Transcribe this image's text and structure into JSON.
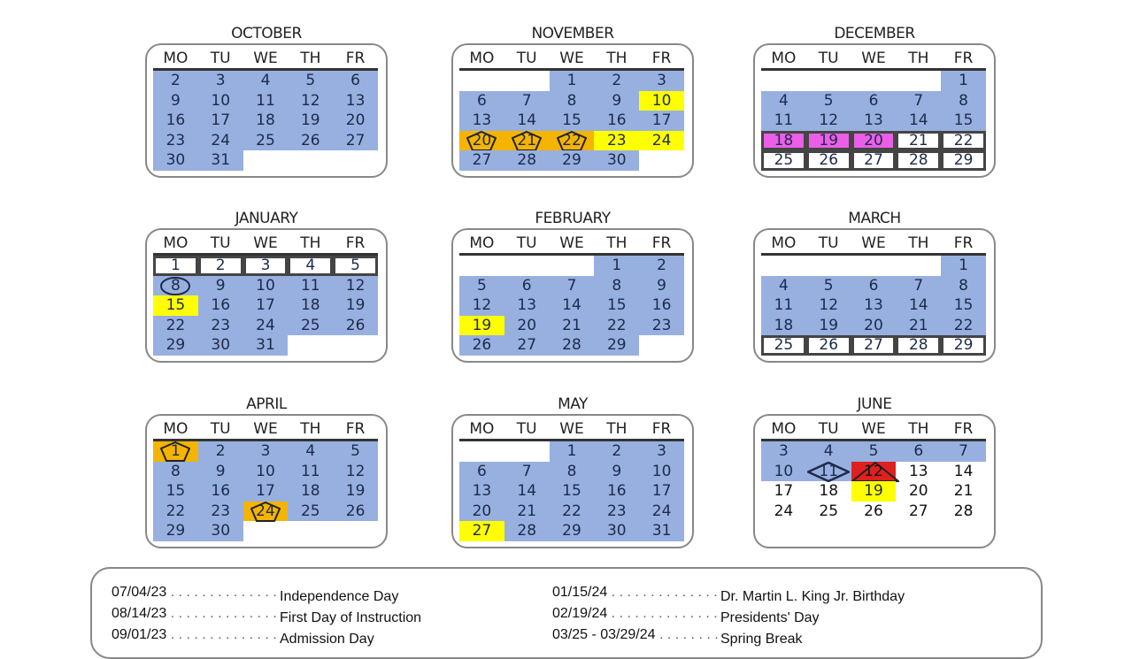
{
  "weekdays": [
    "MO",
    "TU",
    "WE",
    "TH",
    "FR"
  ],
  "colors": {
    "school_day": "#97b0e0",
    "holiday": "#ffff00",
    "recess": "#f4b400",
    "minimum_day": "#ea5ee8",
    "last_day": "#e02020"
  },
  "months": [
    {
      "name": "OCTOBER",
      "weeks": [
        [
          [
            "2",
            "blue"
          ],
          [
            "3",
            "blue"
          ],
          [
            "4",
            "blue"
          ],
          [
            "5",
            "blue"
          ],
          [
            "6",
            "blue"
          ]
        ],
        [
          [
            "9",
            "blue"
          ],
          [
            "10",
            "blue"
          ],
          [
            "11",
            "blue"
          ],
          [
            "12",
            "blue"
          ],
          [
            "13",
            "blue"
          ]
        ],
        [
          [
            "16",
            "blue"
          ],
          [
            "17",
            "blue"
          ],
          [
            "18",
            "blue"
          ],
          [
            "19",
            "blue"
          ],
          [
            "20",
            "blue"
          ]
        ],
        [
          [
            "23",
            "blue"
          ],
          [
            "24",
            "blue"
          ],
          [
            "25",
            "blue"
          ],
          [
            "26",
            "blue"
          ],
          [
            "27",
            "blue"
          ]
        ],
        [
          [
            "30",
            "blue"
          ],
          [
            "31",
            "blue"
          ],
          [
            "",
            ""
          ],
          [
            "",
            ""
          ],
          [
            "",
            ""
          ]
        ]
      ]
    },
    {
      "name": "NOVEMBER",
      "weeks": [
        [
          [
            "",
            ""
          ],
          [
            "",
            ""
          ],
          [
            "1",
            "blue"
          ],
          [
            "2",
            "blue"
          ],
          [
            "3",
            "blue"
          ]
        ],
        [
          [
            "6",
            "blue"
          ],
          [
            "7",
            "blue"
          ],
          [
            "8",
            "blue"
          ],
          [
            "9",
            "blue"
          ],
          [
            "10",
            "yellow"
          ]
        ],
        [
          [
            "13",
            "blue"
          ],
          [
            "14",
            "blue"
          ],
          [
            "15",
            "blue"
          ],
          [
            "16",
            "blue"
          ],
          [
            "17",
            "blue"
          ]
        ],
        [
          [
            "20",
            "orange pentagon"
          ],
          [
            "21",
            "orange pentagon"
          ],
          [
            "22",
            "orange pentagon"
          ],
          [
            "23",
            "yellow"
          ],
          [
            "24",
            "yellow"
          ]
        ],
        [
          [
            "27",
            "blue"
          ],
          [
            "28",
            "blue"
          ],
          [
            "29",
            "blue"
          ],
          [
            "30",
            "blue"
          ],
          [
            "",
            ""
          ]
        ]
      ]
    },
    {
      "name": "DECEMBER",
      "weeks": [
        [
          [
            "",
            ""
          ],
          [
            "",
            ""
          ],
          [
            "",
            ""
          ],
          [
            "",
            ""
          ],
          [
            "1",
            "blue"
          ]
        ],
        [
          [
            "4",
            "blue"
          ],
          [
            "5",
            "blue"
          ],
          [
            "6",
            "blue"
          ],
          [
            "7",
            "blue"
          ],
          [
            "8",
            "blue"
          ]
        ],
        [
          [
            "11",
            "blue"
          ],
          [
            "12",
            "blue"
          ],
          [
            "13",
            "blue"
          ],
          [
            "14",
            "blue"
          ],
          [
            "15",
            "blue"
          ]
        ],
        [
          [
            "18",
            "magenta break"
          ],
          [
            "19",
            "magenta break"
          ],
          [
            "20",
            "magenta break"
          ],
          [
            "21",
            "break"
          ],
          [
            "22",
            "break"
          ]
        ],
        [
          [
            "25",
            "break"
          ],
          [
            "26",
            "break"
          ],
          [
            "27",
            "break"
          ],
          [
            "28",
            "break"
          ],
          [
            "29",
            "break"
          ]
        ]
      ]
    },
    {
      "name": "JANUARY",
      "weeks": [
        [
          [
            "1",
            "break"
          ],
          [
            "2",
            "break"
          ],
          [
            "3",
            "break"
          ],
          [
            "4",
            "break"
          ],
          [
            "5",
            "break"
          ]
        ],
        [
          [
            "8",
            "blue circle"
          ],
          [
            "9",
            "blue"
          ],
          [
            "10",
            "blue"
          ],
          [
            "11",
            "blue"
          ],
          [
            "12",
            "blue"
          ]
        ],
        [
          [
            "15",
            "yellow"
          ],
          [
            "16",
            "blue"
          ],
          [
            "17",
            "blue"
          ],
          [
            "18",
            "blue"
          ],
          [
            "19",
            "blue"
          ]
        ],
        [
          [
            "22",
            "blue"
          ],
          [
            "23",
            "blue"
          ],
          [
            "24",
            "blue"
          ],
          [
            "25",
            "blue"
          ],
          [
            "26",
            "blue"
          ]
        ],
        [
          [
            "29",
            "blue"
          ],
          [
            "30",
            "blue"
          ],
          [
            "31",
            "blue"
          ],
          [
            "",
            ""
          ],
          [
            "",
            ""
          ]
        ]
      ]
    },
    {
      "name": "FEBRUARY",
      "weeks": [
        [
          [
            "",
            ""
          ],
          [
            "",
            ""
          ],
          [
            "",
            ""
          ],
          [
            "1",
            "blue"
          ],
          [
            "2",
            "blue"
          ]
        ],
        [
          [
            "5",
            "blue"
          ],
          [
            "6",
            "blue"
          ],
          [
            "7",
            "blue"
          ],
          [
            "8",
            "blue"
          ],
          [
            "9",
            "blue"
          ]
        ],
        [
          [
            "12",
            "blue"
          ],
          [
            "13",
            "blue"
          ],
          [
            "14",
            "blue"
          ],
          [
            "15",
            "blue"
          ],
          [
            "16",
            "blue"
          ]
        ],
        [
          [
            "19",
            "yellow"
          ],
          [
            "20",
            "blue"
          ],
          [
            "21",
            "blue"
          ],
          [
            "22",
            "blue"
          ],
          [
            "23",
            "blue"
          ]
        ],
        [
          [
            "26",
            "blue"
          ],
          [
            "27",
            "blue"
          ],
          [
            "28",
            "blue"
          ],
          [
            "29",
            "blue"
          ],
          [
            "",
            ""
          ]
        ]
      ]
    },
    {
      "name": "MARCH",
      "weeks": [
        [
          [
            "",
            ""
          ],
          [
            "",
            ""
          ],
          [
            "",
            ""
          ],
          [
            "",
            ""
          ],
          [
            "1",
            "blue"
          ]
        ],
        [
          [
            "4",
            "blue"
          ],
          [
            "5",
            "blue"
          ],
          [
            "6",
            "blue"
          ],
          [
            "7",
            "blue"
          ],
          [
            "8",
            "blue"
          ]
        ],
        [
          [
            "11",
            "blue"
          ],
          [
            "12",
            "blue"
          ],
          [
            "13",
            "blue"
          ],
          [
            "14",
            "blue"
          ],
          [
            "15",
            "blue"
          ]
        ],
        [
          [
            "18",
            "blue"
          ],
          [
            "19",
            "blue"
          ],
          [
            "20",
            "blue"
          ],
          [
            "21",
            "blue"
          ],
          [
            "22",
            "blue"
          ]
        ],
        [
          [
            "25",
            "break"
          ],
          [
            "26",
            "break"
          ],
          [
            "27",
            "break"
          ],
          [
            "28",
            "break"
          ],
          [
            "29",
            "break"
          ]
        ]
      ]
    },
    {
      "name": "APRIL",
      "weeks": [
        [
          [
            "1",
            "orange pentagon"
          ],
          [
            "2",
            "blue"
          ],
          [
            "3",
            "blue"
          ],
          [
            "4",
            "blue"
          ],
          [
            "5",
            "blue"
          ]
        ],
        [
          [
            "8",
            "blue"
          ],
          [
            "9",
            "blue"
          ],
          [
            "10",
            "blue"
          ],
          [
            "11",
            "blue"
          ],
          [
            "12",
            "blue"
          ]
        ],
        [
          [
            "15",
            "blue"
          ],
          [
            "16",
            "blue"
          ],
          [
            "17",
            "blue"
          ],
          [
            "18",
            "blue"
          ],
          [
            "19",
            "blue"
          ]
        ],
        [
          [
            "22",
            "blue"
          ],
          [
            "23",
            "blue"
          ],
          [
            "24",
            "orange pentagon"
          ],
          [
            "25",
            "blue"
          ],
          [
            "26",
            "blue"
          ]
        ],
        [
          [
            "29",
            "blue"
          ],
          [
            "30",
            "blue"
          ],
          [
            "",
            ""
          ],
          [
            "",
            ""
          ],
          [
            "",
            ""
          ]
        ]
      ]
    },
    {
      "name": "MAY",
      "weeks": [
        [
          [
            "",
            ""
          ],
          [
            "",
            ""
          ],
          [
            "1",
            "blue"
          ],
          [
            "2",
            "blue"
          ],
          [
            "3",
            "blue"
          ]
        ],
        [
          [
            "6",
            "blue"
          ],
          [
            "7",
            "blue"
          ],
          [
            "8",
            "blue"
          ],
          [
            "9",
            "blue"
          ],
          [
            "10",
            "blue"
          ]
        ],
        [
          [
            "13",
            "blue"
          ],
          [
            "14",
            "blue"
          ],
          [
            "15",
            "blue"
          ],
          [
            "16",
            "blue"
          ],
          [
            "17",
            "blue"
          ]
        ],
        [
          [
            "20",
            "blue"
          ],
          [
            "21",
            "blue"
          ],
          [
            "22",
            "blue"
          ],
          [
            "23",
            "blue"
          ],
          [
            "24",
            "blue"
          ]
        ],
        [
          [
            "27",
            "yellow"
          ],
          [
            "28",
            "blue"
          ],
          [
            "29",
            "blue"
          ],
          [
            "30",
            "blue"
          ],
          [
            "31",
            "blue"
          ]
        ]
      ]
    },
    {
      "name": "JUNE",
      "weeks": [
        [
          [
            "3",
            "blue"
          ],
          [
            "4",
            "blue"
          ],
          [
            "5",
            "blue"
          ],
          [
            "6",
            "blue"
          ],
          [
            "7",
            "blue"
          ]
        ],
        [
          [
            "10",
            "blue"
          ],
          [
            "11",
            "blue diamond"
          ],
          [
            "12",
            "red triangle"
          ],
          [
            "13",
            "plain"
          ],
          [
            "14",
            "plain"
          ]
        ],
        [
          [
            "17",
            "plain"
          ],
          [
            "18",
            "plain"
          ],
          [
            "19",
            "yellow"
          ],
          [
            "20",
            "plain"
          ],
          [
            "21",
            "plain"
          ]
        ],
        [
          [
            "24",
            "plain"
          ],
          [
            "25",
            "plain"
          ],
          [
            "26",
            "plain"
          ],
          [
            "27",
            "plain"
          ],
          [
            "28",
            "plain"
          ]
        ]
      ]
    }
  ],
  "legend": {
    "left": [
      {
        "date": "07/04/23",
        "label": "Independence Day"
      },
      {
        "date": "08/14/23",
        "label": "First Day of Instruction"
      },
      {
        "date": "09/01/23",
        "label": "Admission Day"
      }
    ],
    "right": [
      {
        "date": "01/15/24",
        "label": "Dr. Martin L. King Jr. Birthday"
      },
      {
        "date": "02/19/24",
        "label": "Presidents' Day"
      },
      {
        "date": "03/25 - 03/29/24",
        "label": "Spring Break"
      }
    ]
  }
}
